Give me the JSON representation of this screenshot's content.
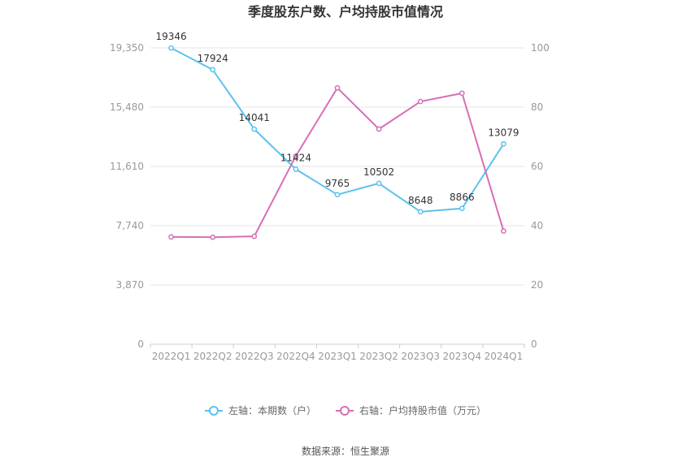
{
  "chart_data": {
    "type": "line",
    "title": "季度股东户数、户均持股市值情况",
    "categories": [
      "2022Q1",
      "2022Q2",
      "2022Q3",
      "2022Q4",
      "2023Q1",
      "2023Q2",
      "2023Q3",
      "2023Q4",
      "2024Q1"
    ],
    "series": [
      {
        "name": "左轴：本期数（户）",
        "axis": "left",
        "color": "#5bc2ee",
        "values": [
          19346,
          17924,
          14041,
          11424,
          9765,
          10502,
          8648,
          8866,
          13079
        ],
        "data_labels": [
          "19346",
          "17924",
          "14041",
          "11424",
          "9765",
          "10502",
          "8648",
          "8866",
          "13079"
        ]
      },
      {
        "name": "右轴：户均持股市值（万元）",
        "axis": "right",
        "color": "#d66fb6",
        "values": [
          36.2,
          36.1,
          36.4,
          63.5,
          86.5,
          72.6,
          81.9,
          84.7,
          38.2
        ]
      }
    ],
    "left_axis": {
      "ylim": [
        0,
        19350
      ],
      "ticks": [
        "0",
        "3,870",
        "7,740",
        "11,610",
        "15,480",
        "19,350"
      ]
    },
    "right_axis": {
      "ylim": [
        0,
        100
      ],
      "ticks": [
        "0",
        "20",
        "40",
        "60",
        "80",
        "100"
      ]
    },
    "grid": true,
    "legend_position": "bottom"
  },
  "source_text": "数据来源：恒生聚源"
}
